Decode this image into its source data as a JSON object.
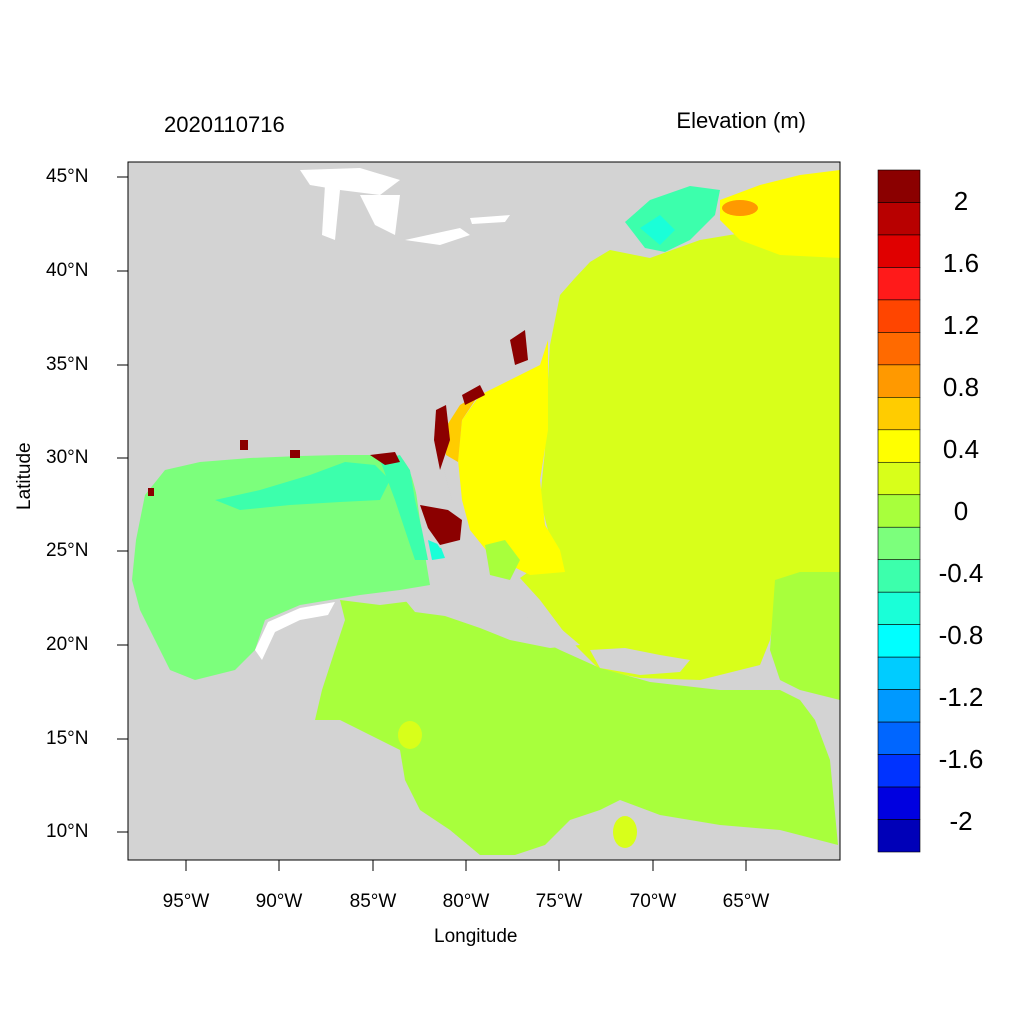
{
  "header": {
    "datetime": "2020110716",
    "variable": "Elevation (m)"
  },
  "axes": {
    "xlabel": "Longitude",
    "ylabel": "Latitude",
    "lon_ticks": [
      "95°W",
      "90°W",
      "85°W",
      "80°W",
      "75°W",
      "70°W",
      "65°W"
    ],
    "lat_ticks": [
      "45°N",
      "40°N",
      "35°N",
      "30°N",
      "25°N",
      "20°N",
      "15°N",
      "10°N"
    ]
  },
  "colorbar": {
    "labels": [
      "2",
      "1.6",
      "1.2",
      "0.8",
      "0.4",
      "0",
      "-0.4",
      "-0.8",
      "-1.2",
      "-1.6",
      "-2"
    ],
    "colors": [
      "#8b0000",
      "#b80000",
      "#e00000",
      "#ff1a1a",
      "#ff4500",
      "#ff6a00",
      "#ff9900",
      "#ffcc00",
      "#ffff00",
      "#d8ff1a",
      "#a8ff3c",
      "#7cff7c",
      "#3cffac",
      "#1affd8",
      "#00ffff",
      "#00ccff",
      "#0099ff",
      "#0066ff",
      "#0033ff",
      "#0000e0",
      "#0000b8"
    ]
  },
  "map_colors": {
    "land": "#d3d3d3",
    "gulf": "#7cff7c",
    "caribbean": "#a8ff3c",
    "atlantic": "#d8ff1a",
    "shelf_yellow": "#ffff00",
    "orange": "#ffcc00",
    "cyan": "#3cffac",
    "surge": "#8b0000"
  }
}
